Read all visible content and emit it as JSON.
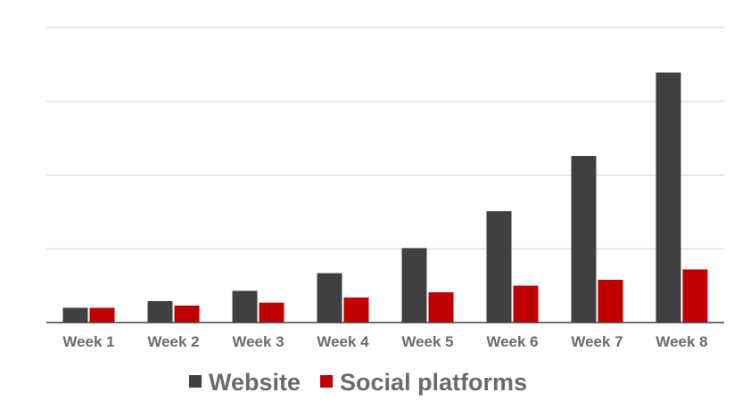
{
  "chart_data": {
    "type": "bar",
    "categories": [
      "Week 1",
      "Week 2",
      "Week 3",
      "Week 4",
      "Week 5",
      "Week 6",
      "Week 7",
      "Week 8"
    ],
    "series": [
      {
        "name": "Website",
        "color": "#404040",
        "values": [
          20,
          29,
          43,
          67,
          101,
          151,
          226,
          339
        ]
      },
      {
        "name": "Social platforms",
        "color": "#c00000",
        "values": [
          20,
          23,
          27,
          34,
          41,
          50,
          58,
          72
        ]
      }
    ],
    "ylim": [
      0,
      400
    ],
    "grid": true,
    "legend": "bottom"
  }
}
